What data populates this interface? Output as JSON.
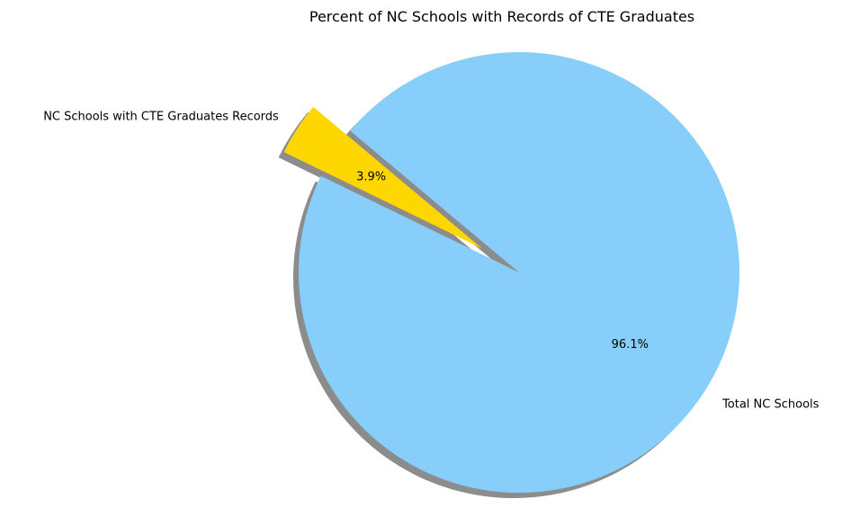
{
  "chart_data": {
    "type": "pie",
    "title": "Percent of NC Schools with Records of CTE Graduates",
    "slices": [
      {
        "label": "NC Schools with CTE Graduates Records",
        "percent": 3.9,
        "pct_label": "3.9%",
        "color": "#FFD700",
        "exploded": true
      },
      {
        "label": "Total NC Schools",
        "percent": 96.1,
        "pct_label": "96.1%",
        "color": "#87CEFA",
        "exploded": false
      }
    ],
    "start_angle_deg": 140,
    "shadow": true,
    "legend": "none"
  }
}
